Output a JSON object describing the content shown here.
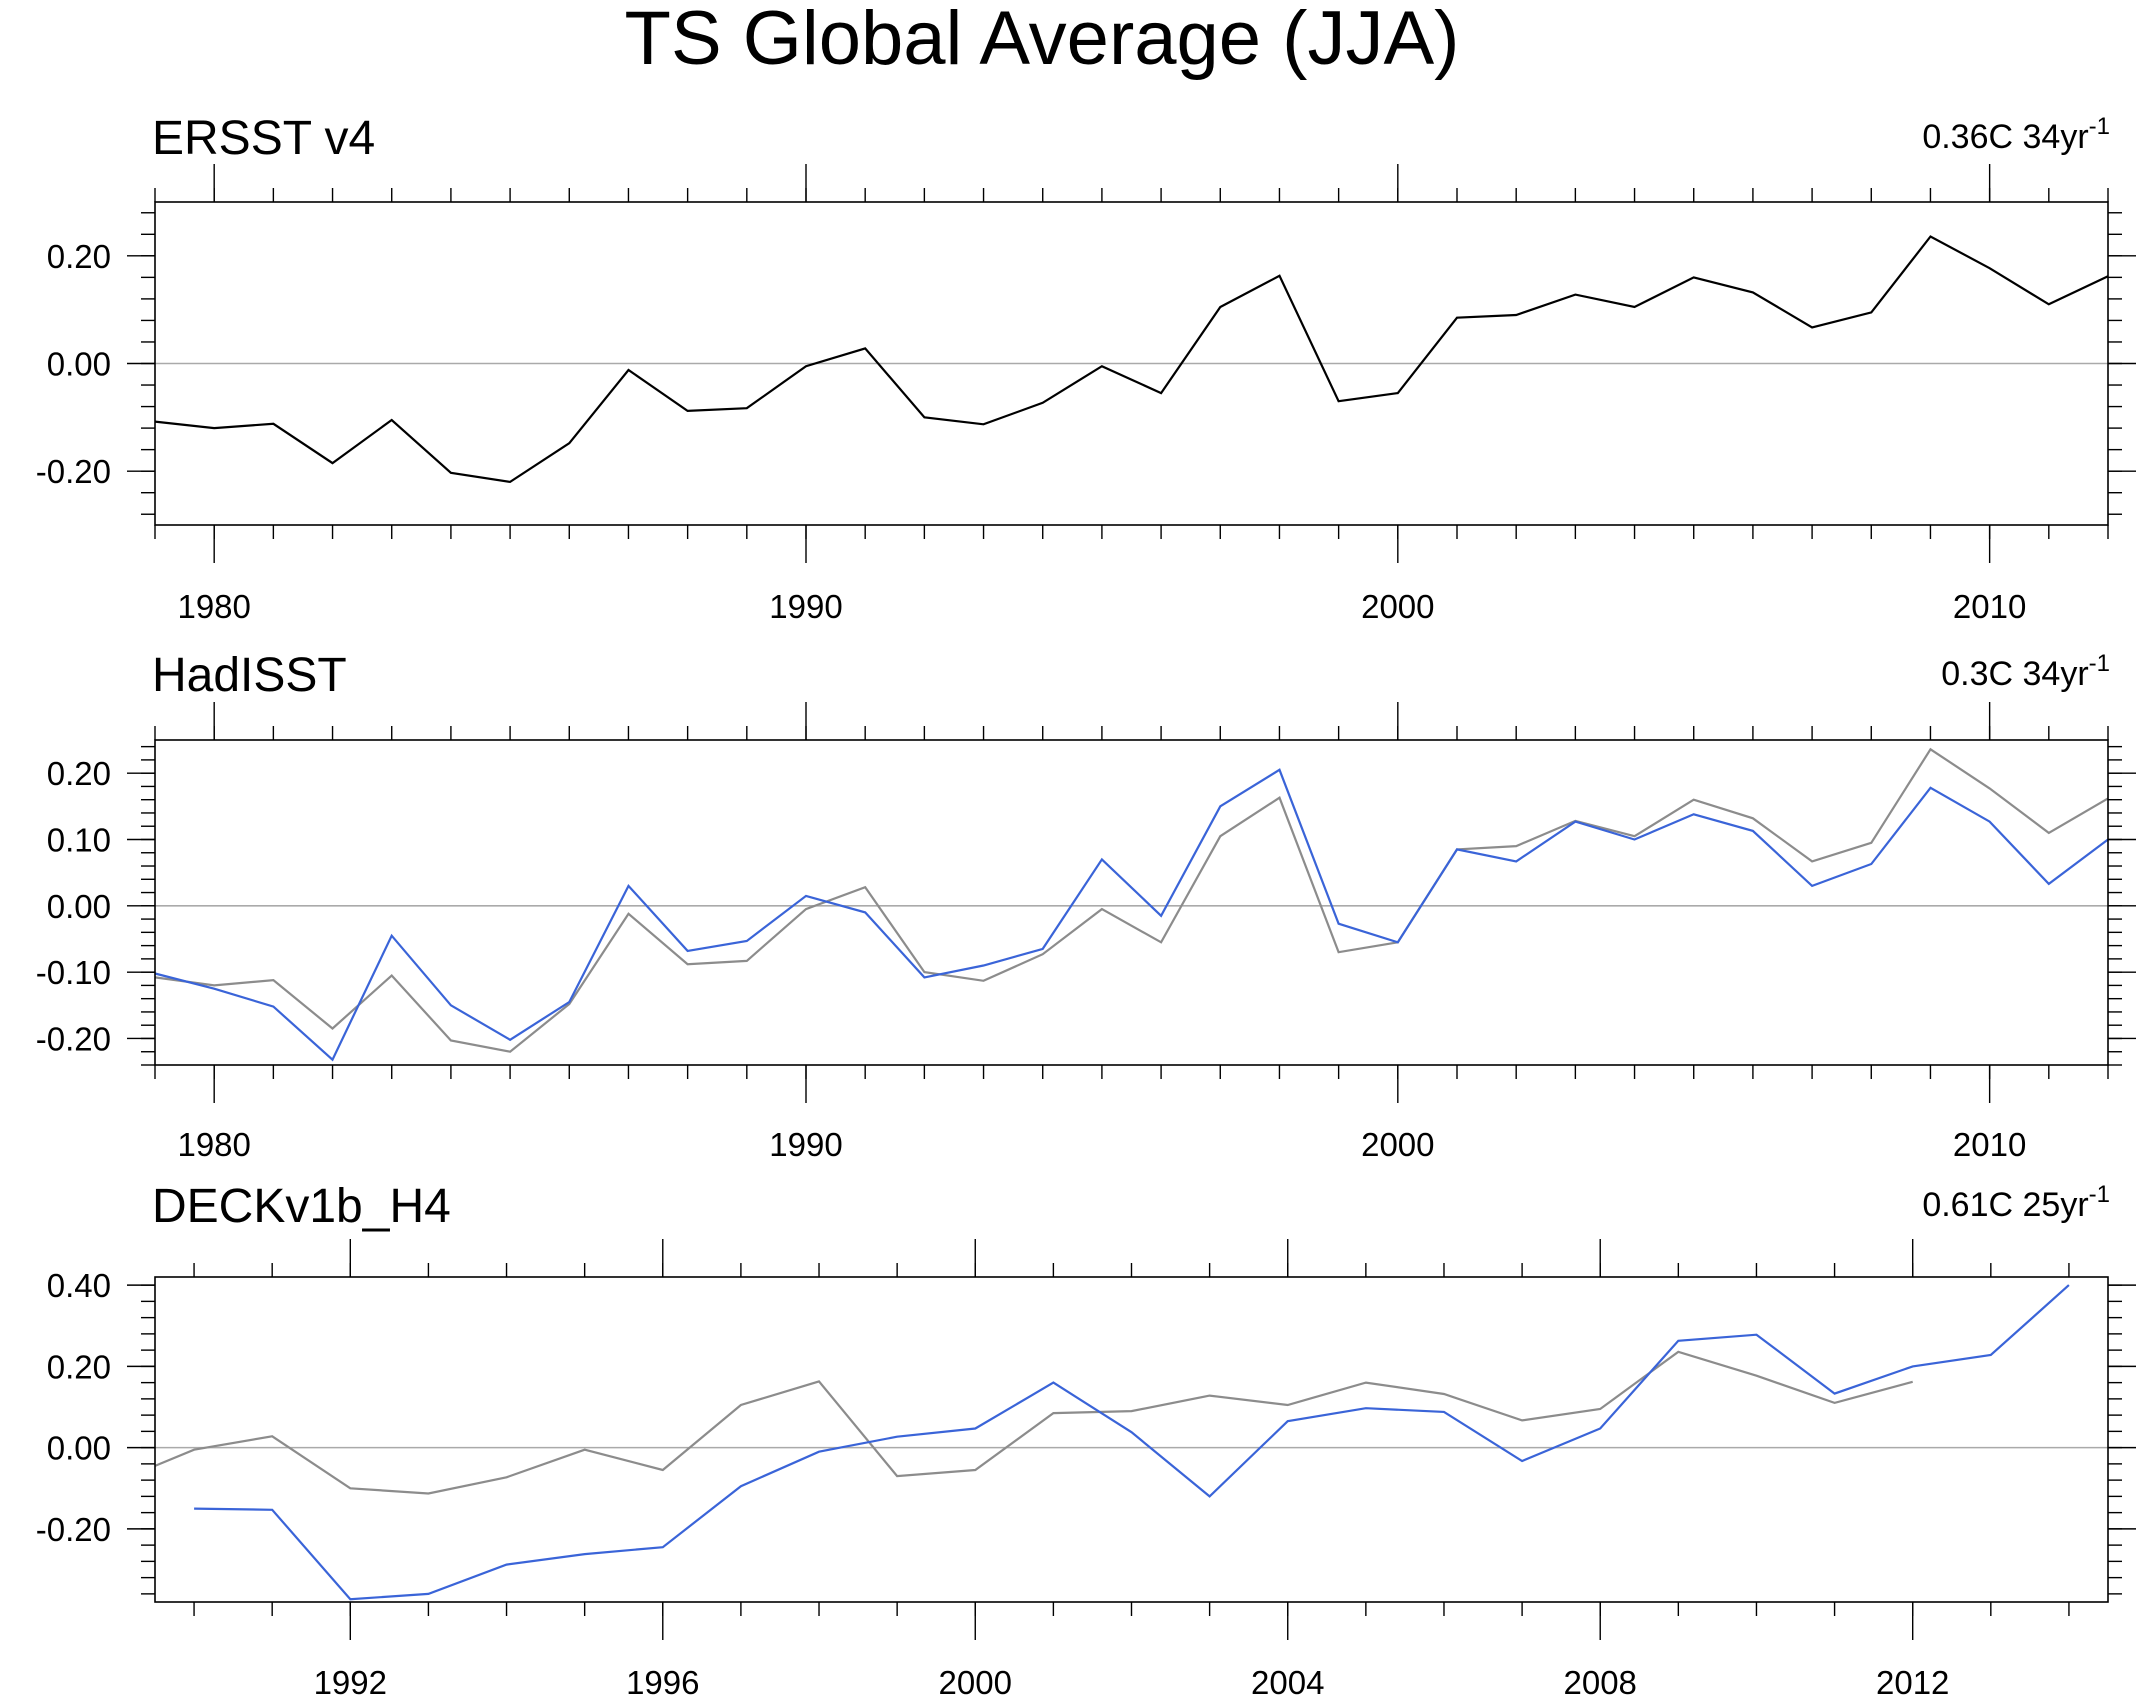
{
  "title": "TS Global Average (JJA)",
  "chart_data": [
    {
      "type": "line",
      "title": "ERSST v4",
      "trend_label": "0.36C 34yr",
      "trend_superscript": "-1",
      "xlim": [
        1979,
        2012
      ],
      "ylim": [
        -0.3,
        0.3
      ],
      "y_ticks": [
        -0.2,
        0.0,
        0.2
      ],
      "y_tick_labels": [
        "-0.20",
        "0.00",
        "0.20"
      ],
      "x_ticks": [
        1980,
        1990,
        2000,
        2010
      ],
      "x_tick_labels": [
        "1980",
        "1990",
        "2000",
        "2010"
      ],
      "series": [
        {
          "name": "ERSST v4",
          "color": "#000000",
          "x": [
            1979,
            1980,
            1981,
            1982,
            1983,
            1984,
            1985,
            1986,
            1987,
            1988,
            1989,
            1990,
            1991,
            1992,
            1993,
            1994,
            1995,
            1996,
            1997,
            1998,
            1999,
            2000,
            2001,
            2002,
            2003,
            2004,
            2005,
            2006,
            2007,
            2008,
            2009,
            2010,
            2011,
            2012
          ],
          "values": [
            -0.108,
            -0.12,
            -0.112,
            -0.185,
            -0.105,
            -0.203,
            -0.22,
            -0.148,
            -0.012,
            -0.088,
            -0.083,
            -0.005,
            0.028,
            -0.1,
            -0.113,
            -0.073,
            -0.005,
            -0.055,
            0.105,
            0.163,
            -0.07,
            -0.055,
            0.085,
            0.09,
            0.128,
            0.105,
            0.16,
            0.132,
            0.067,
            0.095,
            0.236,
            0.177,
            0.11,
            0.162
          ]
        }
      ]
    },
    {
      "type": "line",
      "title": "HadISST",
      "trend_label": "0.3C 34yr",
      "trend_superscript": "-1",
      "xlim": [
        1979,
        2012
      ],
      "ylim": [
        -0.24,
        0.25
      ],
      "y_ticks": [
        -0.2,
        -0.1,
        0.0,
        0.1,
        0.2
      ],
      "y_tick_labels": [
        "-0.20",
        "-0.10",
        "0.00",
        "0.10",
        "0.20"
      ],
      "x_ticks": [
        1980,
        1990,
        2000,
        2010
      ],
      "x_tick_labels": [
        "1980",
        "1990",
        "2000",
        "2010"
      ],
      "series": [
        {
          "name": "ERSST v4",
          "color": "#8c8c8c",
          "x": [
            1979,
            1980,
            1981,
            1982,
            1983,
            1984,
            1985,
            1986,
            1987,
            1988,
            1989,
            1990,
            1991,
            1992,
            1993,
            1994,
            1995,
            1996,
            1997,
            1998,
            1999,
            2000,
            2001,
            2002,
            2003,
            2004,
            2005,
            2006,
            2007,
            2008,
            2009,
            2010,
            2011,
            2012
          ],
          "values": [
            -0.108,
            -0.12,
            -0.112,
            -0.185,
            -0.105,
            -0.203,
            -0.22,
            -0.148,
            -0.012,
            -0.088,
            -0.083,
            -0.005,
            0.028,
            -0.1,
            -0.113,
            -0.073,
            -0.005,
            -0.055,
            0.105,
            0.163,
            -0.07,
            -0.055,
            0.085,
            0.09,
            0.128,
            0.105,
            0.16,
            0.132,
            0.067,
            0.095,
            0.236,
            0.177,
            0.11,
            0.162
          ]
        },
        {
          "name": "HadISST",
          "color": "#3a64d8",
          "x": [
            1979,
            1980,
            1981,
            1982,
            1983,
            1984,
            1985,
            1986,
            1987,
            1988,
            1989,
            1990,
            1991,
            1992,
            1993,
            1994,
            1995,
            1996,
            1997,
            1998,
            1999,
            2000,
            2001,
            2002,
            2003,
            2004,
            2005,
            2006,
            2007,
            2008,
            2009,
            2010,
            2011,
            2012
          ],
          "values": [
            -0.102,
            -0.125,
            -0.152,
            -0.232,
            -0.045,
            -0.15,
            -0.202,
            -0.145,
            0.03,
            -0.068,
            -0.053,
            0.015,
            -0.01,
            -0.108,
            -0.09,
            -0.065,
            0.07,
            -0.015,
            0.15,
            0.205,
            -0.027,
            -0.055,
            0.085,
            0.067,
            0.127,
            0.1,
            0.138,
            0.113,
            0.03,
            0.063,
            0.178,
            0.127,
            0.033,
            0.1
          ]
        }
      ]
    },
    {
      "type": "line",
      "title": "DECKv1b_H4",
      "trend_label": "0.61C 25yr",
      "trend_superscript": "-1",
      "xlim": [
        1989.5,
        2014.5
      ],
      "ylim": [
        -0.38,
        0.42
      ],
      "y_ticks": [
        -0.2,
        0.0,
        0.2,
        0.4
      ],
      "y_tick_labels": [
        "-0.20",
        "0.00",
        "0.20",
        "0.40"
      ],
      "x_ticks": [
        1992,
        1996,
        2000,
        2004,
        2008,
        2012
      ],
      "x_tick_labels": [
        "1992",
        "1996",
        "2000",
        "2004",
        "2008",
        "2012"
      ],
      "series": [
        {
          "name": "ERSST v4",
          "color": "#8c8c8c",
          "x": [
            1989.5,
            1990,
            1991,
            1992,
            1993,
            1994,
            1995,
            1996,
            1997,
            1998,
            1999,
            2000,
            2001,
            2002,
            2003,
            2004,
            2005,
            2006,
            2007,
            2008,
            2009,
            2010,
            2011,
            2012
          ],
          "values": [
            -0.045,
            -0.005,
            0.028,
            -0.1,
            -0.113,
            -0.073,
            -0.005,
            -0.055,
            0.105,
            0.163,
            -0.07,
            -0.055,
            0.085,
            0.09,
            0.128,
            0.105,
            0.16,
            0.132,
            0.067,
            0.095,
            0.236,
            0.177,
            0.11,
            0.162
          ]
        },
        {
          "name": "DECKv1b_H4",
          "color": "#3a64d8",
          "x": [
            1990,
            1991,
            1992,
            1993,
            1994,
            1995,
            1996,
            1997,
            1998,
            1999,
            2000,
            2001,
            2002,
            2003,
            2004,
            2005,
            2006,
            2007,
            2008,
            2009,
            2010,
            2011,
            2012,
            2013,
            2014
          ],
          "values": [
            -0.15,
            -0.153,
            -0.373,
            -0.36,
            -0.288,
            -0.262,
            -0.245,
            -0.095,
            -0.01,
            0.027,
            0.047,
            0.16,
            0.038,
            -0.12,
            0.065,
            0.097,
            0.088,
            -0.033,
            0.047,
            0.263,
            0.278,
            0.133,
            0.2,
            0.228,
            0.4
          ]
        }
      ]
    }
  ]
}
